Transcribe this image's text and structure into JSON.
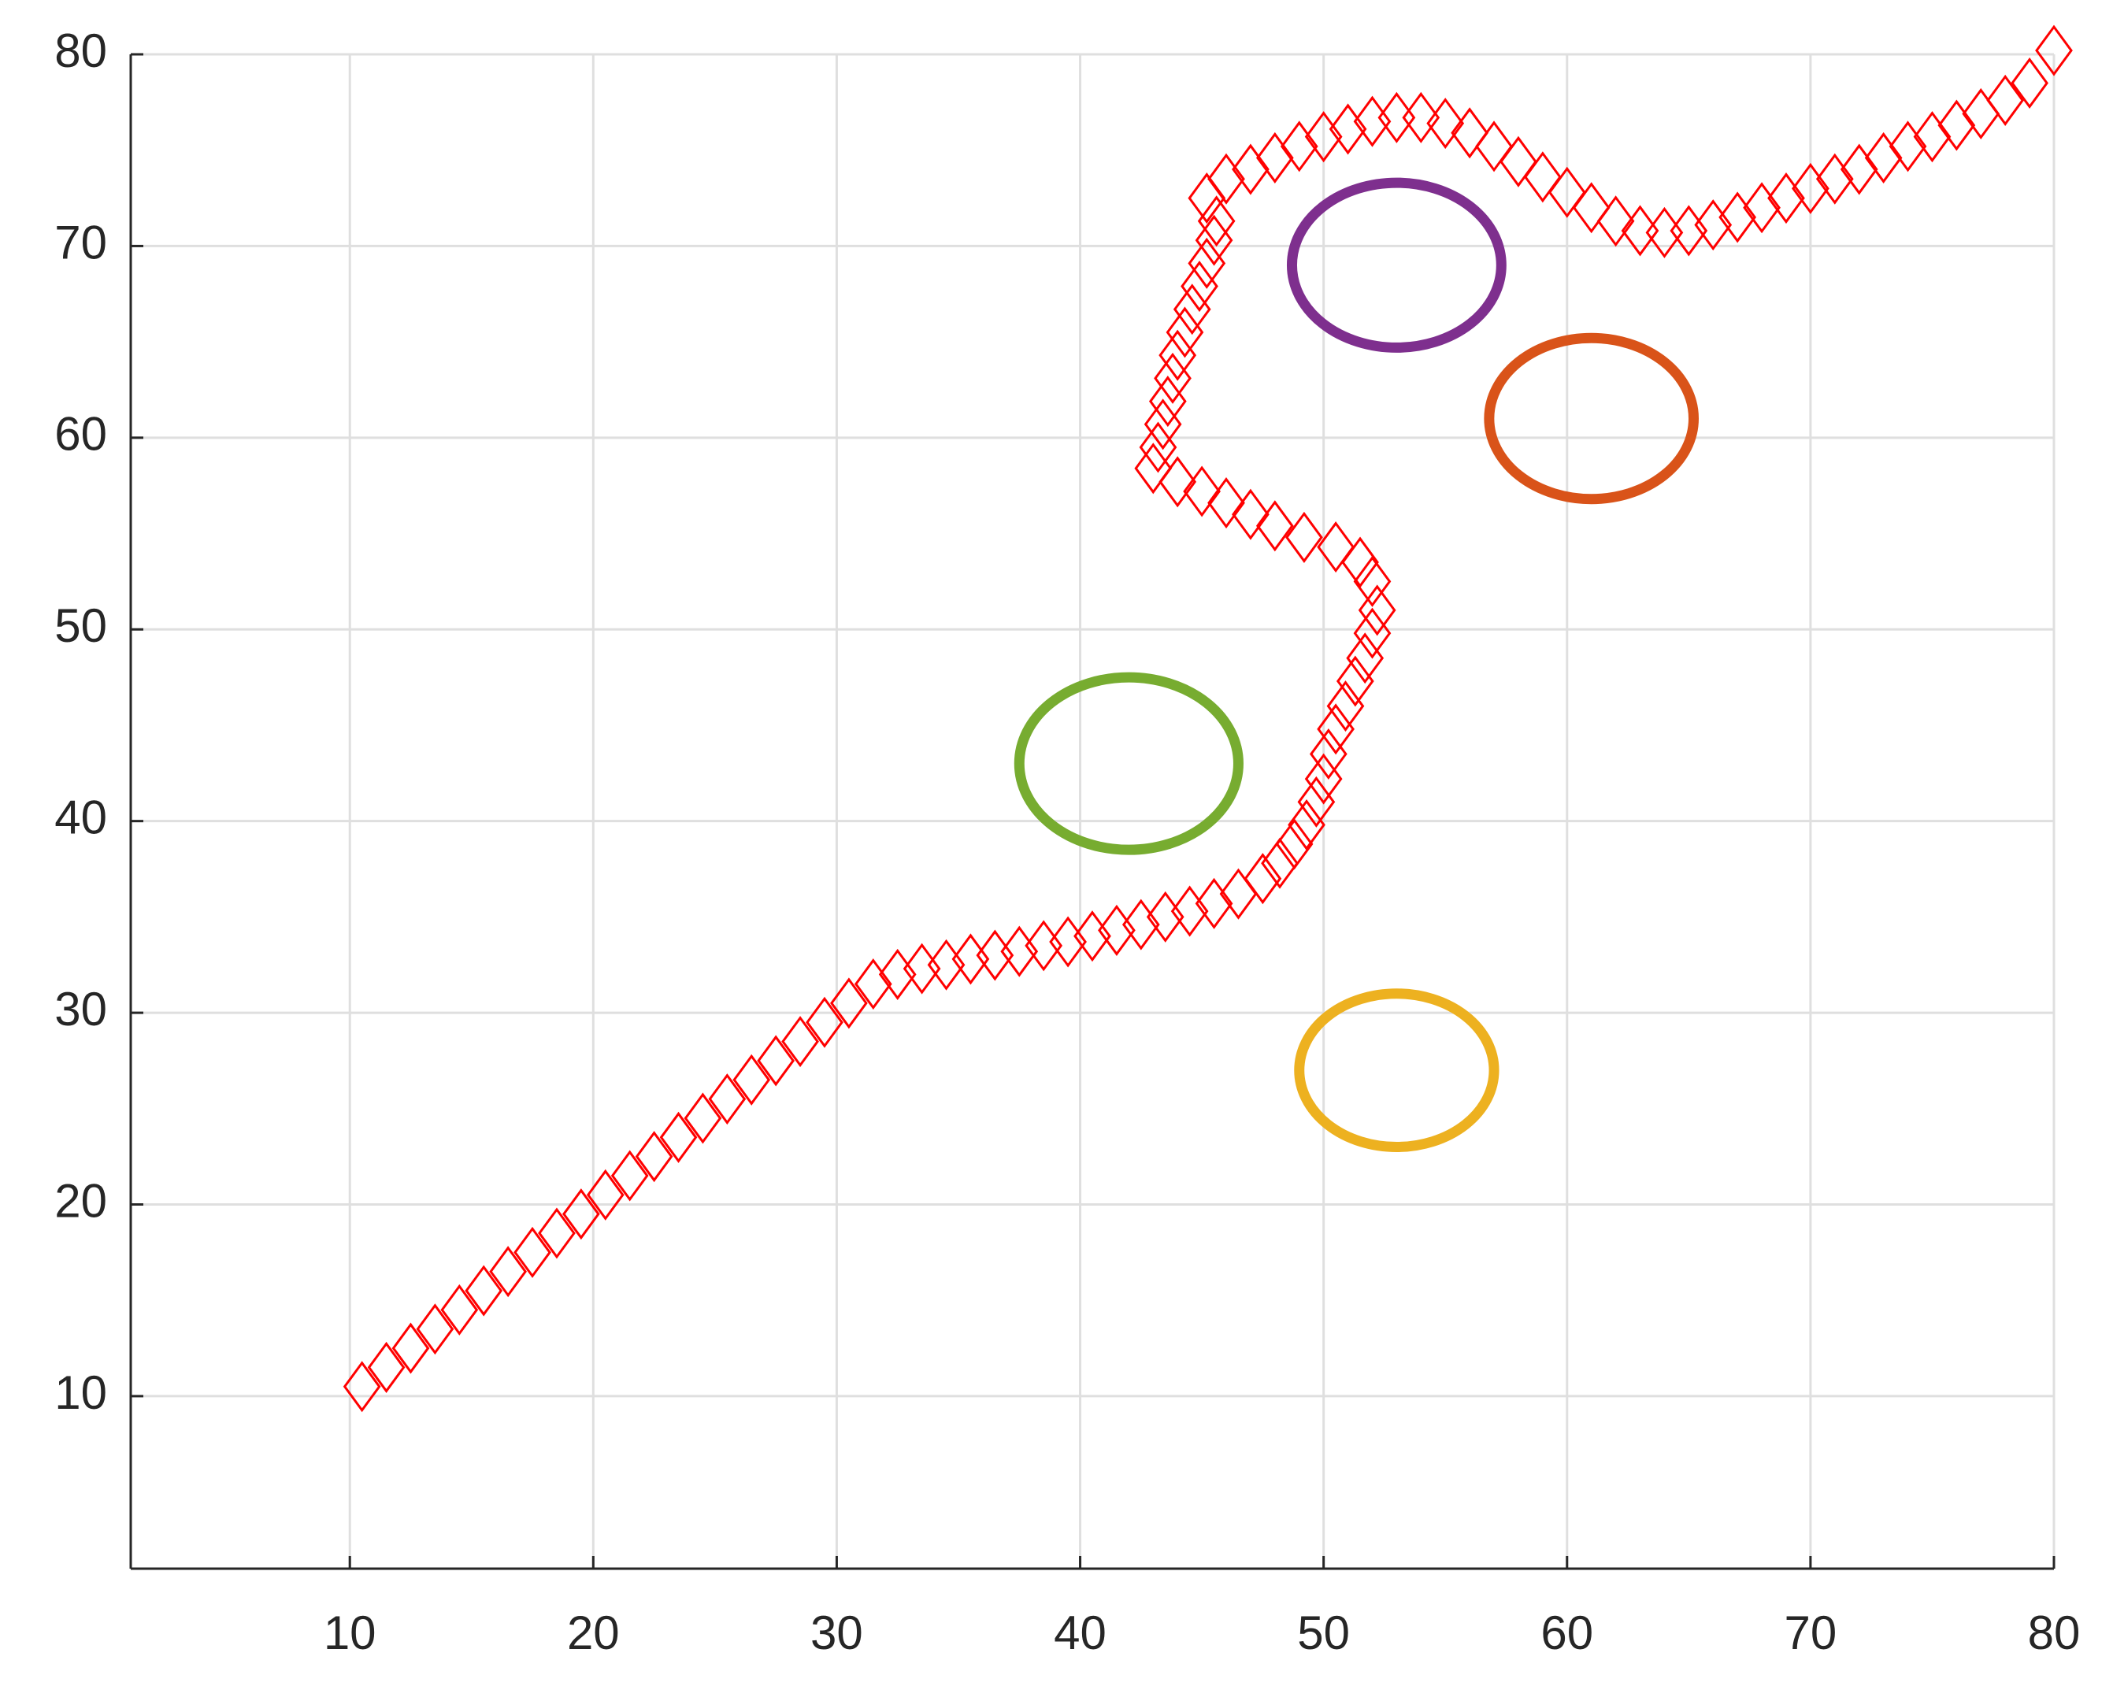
{
  "chart_data": {
    "type": "scatter",
    "xlim": [
      1,
      80
    ],
    "ylim": [
      1,
      80
    ],
    "xticks": [
      10,
      20,
      30,
      40,
      50,
      60,
      70,
      80
    ],
    "yticks": [
      10,
      20,
      30,
      40,
      50,
      60,
      70,
      80
    ],
    "grid": true,
    "series": [
      {
        "color": "#ff0000",
        "marker": "diamond",
        "x": [
          10.5,
          11.5,
          12.5,
          13.5,
          14.5,
          15.5,
          16.5,
          17.5,
          18.5,
          19.5,
          20.5,
          21.5,
          22.5,
          23.5,
          24.5,
          25.5,
          26.5,
          27.5,
          28.5,
          29.5,
          30.5,
          31.5,
          32.5,
          33.5,
          34.5,
          35.5,
          36.5,
          37.5,
          38.5,
          39.5,
          40.5,
          41.5,
          42.5,
          43.5,
          44.5,
          45.5,
          46.5,
          47.5,
          48.2,
          48.8,
          49.3,
          49.7,
          50,
          50.2,
          50.5,
          50.9,
          51.3,
          51.7,
          52,
          52.2,
          52,
          51.5,
          50.5,
          49.2,
          48,
          47,
          46,
          45,
          44,
          43,
          43.2,
          43.4,
          43.6,
          43.8,
          44,
          44.3,
          44.6,
          44.9,
          45.2,
          45.5,
          45.6,
          45.2,
          46,
          47,
          48,
          49,
          50,
          51,
          52,
          53,
          54,
          55,
          56,
          57,
          58,
          59,
          60,
          61,
          62,
          63,
          64,
          65,
          66,
          67,
          68,
          69,
          70,
          71,
          72,
          73,
          74,
          75,
          76,
          77,
          78,
          79,
          80
        ],
        "values": [
          10.5,
          11.5,
          12.5,
          13.5,
          14.5,
          15.5,
          16.5,
          17.5,
          18.5,
          19.5,
          20.5,
          21.5,
          22.5,
          23.5,
          24.5,
          25.5,
          26.5,
          27.5,
          28.5,
          29.5,
          30.5,
          31.5,
          32,
          32.3,
          32.5,
          32.8,
          33,
          33.2,
          33.5,
          33.7,
          34,
          34.3,
          34.6,
          35,
          35.3,
          35.7,
          36.2,
          37,
          37.8,
          38.8,
          39.8,
          41,
          42.2,
          43.5,
          44.8,
          46,
          47.3,
          48.5,
          49.8,
          51,
          52.5,
          53.5,
          54.3,
          54.8,
          55.4,
          56,
          56.6,
          57.2,
          57.7,
          58.4,
          59.5,
          60.7,
          61.9,
          63.1,
          64.3,
          65.5,
          66.7,
          67.9,
          69.1,
          70.3,
          71.3,
          72.5,
          73.5,
          74,
          74.6,
          75.2,
          75.7,
          76.1,
          76.5,
          76.7,
          76.7,
          76.4,
          75.9,
          75.2,
          74.4,
          73.6,
          72.8,
          72,
          71.3,
          70.8,
          70.7,
          70.8,
          71.1,
          71.5,
          72,
          72.5,
          73,
          73.5,
          74,
          74.6,
          75.2,
          75.7,
          76.3,
          76.9,
          77.6,
          78.5,
          80.2
        ]
      }
    ],
    "circles": [
      {
        "x": 53,
        "y": 69,
        "r": 4.3,
        "color": "#7e2f8e"
      },
      {
        "x": 61,
        "y": 61,
        "r": 4.2,
        "color": "#d95319"
      },
      {
        "x": 42,
        "y": 43,
        "r": 4.5,
        "color": "#77ac30"
      },
      {
        "x": 53,
        "y": 27,
        "r": 4,
        "color": "#edb120"
      }
    ]
  }
}
